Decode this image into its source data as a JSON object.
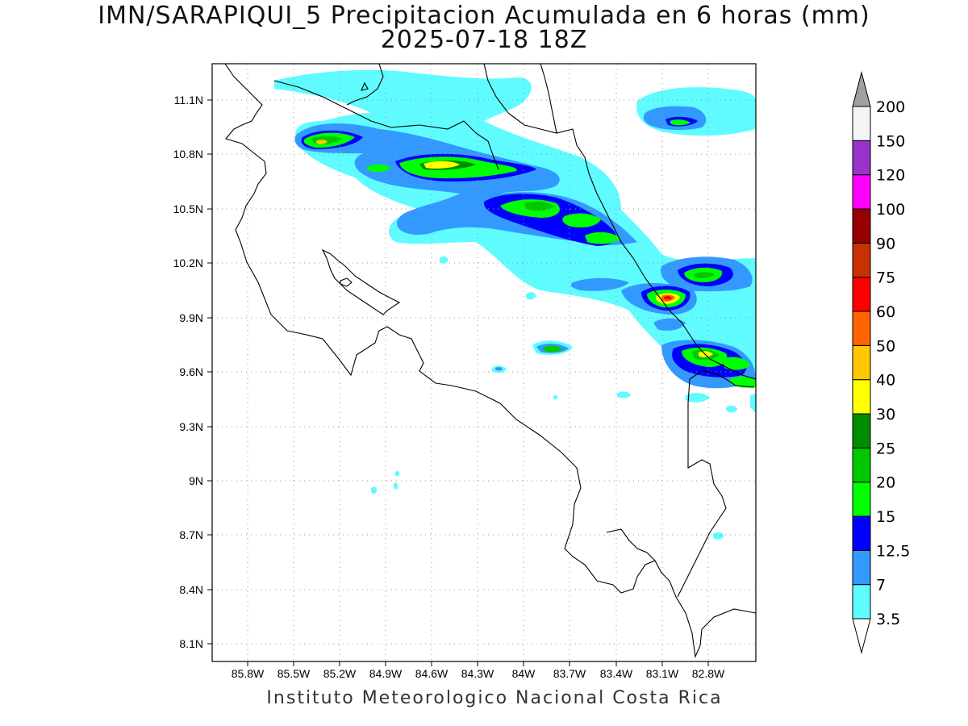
{
  "title": {
    "line1": "IMN/SARAPIQUI_5 Precipitacion Acumulada en 6 horas (mm)",
    "line2": "2025-07-18 18Z"
  },
  "footer": "Instituto Meteorologico Nacional Costa Rica",
  "axes": {
    "x_ticks": [
      "85.8W",
      "85.5W",
      "85.2W",
      "84.9W",
      "84.6W",
      "84.3W",
      "84W",
      "83.7W",
      "83.4W",
      "83.1W",
      "82.8W"
    ],
    "y_ticks": [
      "11.1N",
      "10.8N",
      "10.5N",
      "10.2N",
      "9.9N",
      "9.6N",
      "9.3N",
      "9N",
      "8.7N",
      "8.4N",
      "8.1N"
    ],
    "grid": "dotted"
  },
  "colorbar": {
    "labels": [
      "3.5",
      "7",
      "12.5",
      "15",
      "20",
      "25",
      "30",
      "40",
      "50",
      "60",
      "75",
      "90",
      "100",
      "120",
      "150",
      "200"
    ],
    "colors": [
      "#5ffbff",
      "#3399ff",
      "#0000ff",
      "#00ff00",
      "#00c800",
      "#008c00",
      "#ffff00",
      "#ffc800",
      "#ff6400",
      "#ff0000",
      "#c83200",
      "#960000",
      "#ff00ff",
      "#9933cc",
      "#f4f4f4"
    ],
    "over_color": "#a0a0a0",
    "under_color": "#ffffff"
  }
}
